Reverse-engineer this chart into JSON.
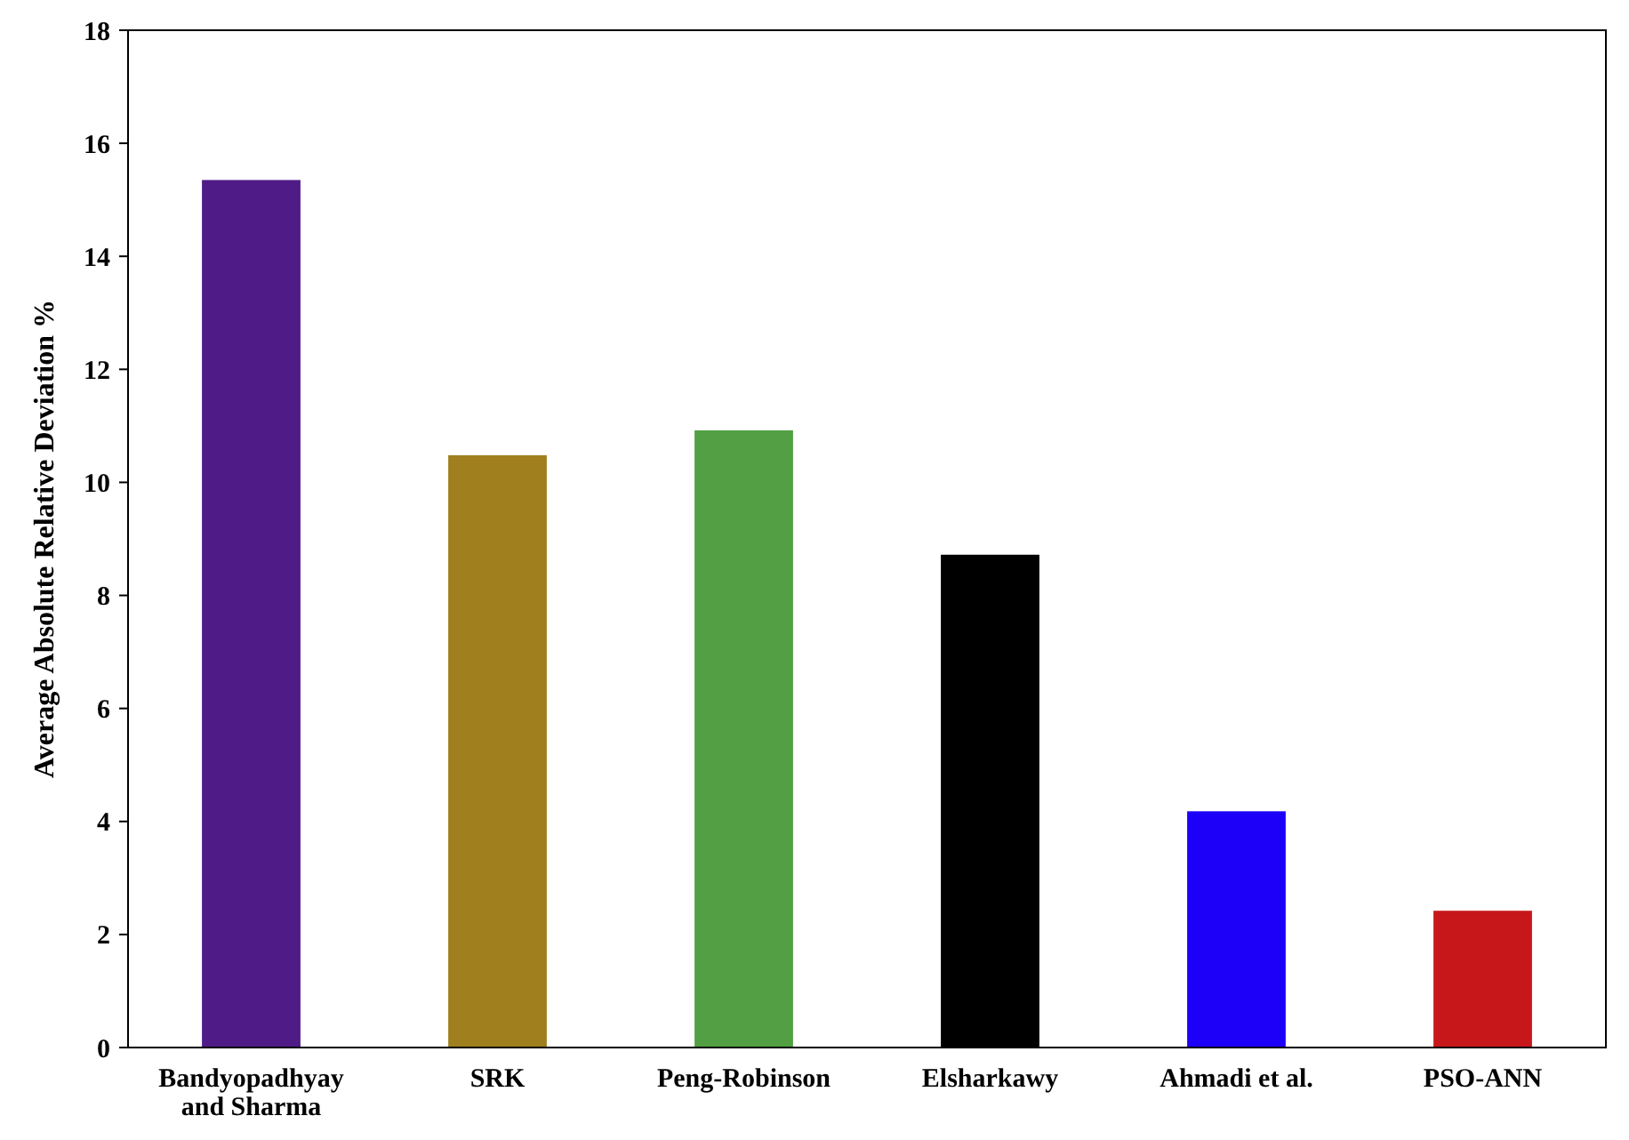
{
  "chart_data": {
    "type": "bar",
    "ylabel": "Average Absolute Relative Deviation %",
    "categories": [
      "Bandyopadhyay and Sharma",
      "SRK",
      "Peng-Robinson",
      "Elsharkawy",
      "Ahmadi et al.",
      "PSO-ANN"
    ],
    "values": [
      15.35,
      10.48,
      10.92,
      8.72,
      4.18,
      2.42
    ],
    "colors": [
      "#4f1c87",
      "#a07f1e",
      "#52a043",
      "#000000",
      "#1c00f8",
      "#c8171b"
    ],
    "ylim": [
      0,
      18
    ],
    "yticks": [
      0,
      2,
      4,
      6,
      8,
      10,
      12,
      14,
      16,
      18
    ],
    "grid": false
  }
}
